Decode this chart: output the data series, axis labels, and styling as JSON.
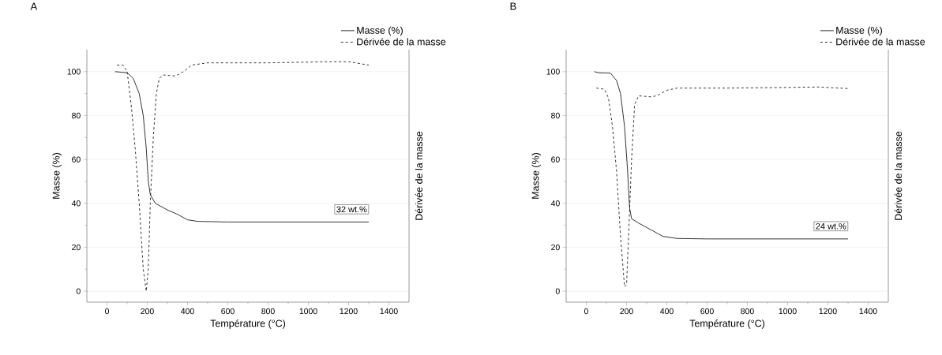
{
  "chart_data": [
    {
      "type": "line",
      "title": "A",
      "xlabel": "Température (°C)",
      "ylabel": "Masse (%)",
      "y2label": "Dérivée de la masse",
      "xlim": [
        -100,
        1500
      ],
      "xticks": [
        0,
        200,
        400,
        600,
        800,
        1000,
        1200,
        1400
      ],
      "ylim": [
        -5,
        110
      ],
      "yticks": [
        0,
        20,
        40,
        60,
        80,
        100
      ],
      "grid": "y",
      "legend": "top right",
      "marker": "none",
      "annotations": [
        "32 wt.%"
      ],
      "series": [
        {
          "name": "Masse (%)",
          "color": "#000000",
          "line_style": "solid",
          "x": [
            40,
            100,
            130,
            160,
            180,
            195,
            205,
            215,
            240,
            300,
            350,
            400,
            450,
            600,
            1000,
            1300
          ],
          "values": [
            100,
            99.5,
            97,
            90,
            80,
            65,
            50,
            44,
            40,
            37,
            35,
            32.5,
            31.8,
            31.5,
            31.5,
            31.5
          ]
        },
        {
          "name": "Dérivée de la masse",
          "color": "#000000",
          "line_style": "dashed",
          "x": [
            50,
            80,
            100,
            120,
            140,
            160,
            180,
            195,
            205,
            215,
            230,
            245,
            260,
            280,
            340,
            380,
            420,
            500,
            800,
            1100,
            1200,
            1300
          ],
          "values": [
            103,
            103,
            100,
            85,
            65,
            40,
            10,
            0,
            10,
            40,
            70,
            90,
            97,
            98.5,
            98,
            100,
            103,
            104,
            104,
            104.5,
            104.5,
            103
          ]
        }
      ]
    },
    {
      "type": "line",
      "title": "B",
      "xlabel": "Température (°C)",
      "ylabel": "Masse (%)",
      "y2label": "Dérivée de la masse",
      "xlim": [
        -100,
        1500
      ],
      "xticks": [
        0,
        200,
        400,
        600,
        800,
        1000,
        1200,
        1400
      ],
      "ylim": [
        -5,
        110
      ],
      "yticks": [
        0,
        20,
        40,
        60,
        80,
        100
      ],
      "grid": "y",
      "legend": "top right",
      "marker": "none",
      "annotations": [
        "24 wt.%"
      ],
      "series": [
        {
          "name": "Masse (%)",
          "color": "#000000",
          "line_style": "solid",
          "x": [
            40,
            60,
            120,
            150,
            170,
            190,
            205,
            215,
            225,
            260,
            320,
            380,
            450,
            600,
            1300
          ],
          "values": [
            100,
            99.5,
            99.3,
            96,
            90,
            75,
            55,
            38,
            33,
            31,
            28,
            25,
            24,
            23.8,
            23.8
          ]
        },
        {
          "name": "Dérivée de la masse",
          "color": "#000000",
          "line_style": "dashed",
          "x": [
            50,
            90,
            110,
            130,
            150,
            170,
            190,
            200,
            210,
            225,
            240,
            260,
            320,
            350,
            400,
            450,
            700,
            1000,
            1150,
            1300
          ],
          "values": [
            92.5,
            92,
            88,
            75,
            55,
            25,
            2,
            3,
            25,
            60,
            85,
            89,
            88.5,
            89,
            91.5,
            92.5,
            92.5,
            92.8,
            93,
            92.3
          ]
        }
      ]
    }
  ]
}
